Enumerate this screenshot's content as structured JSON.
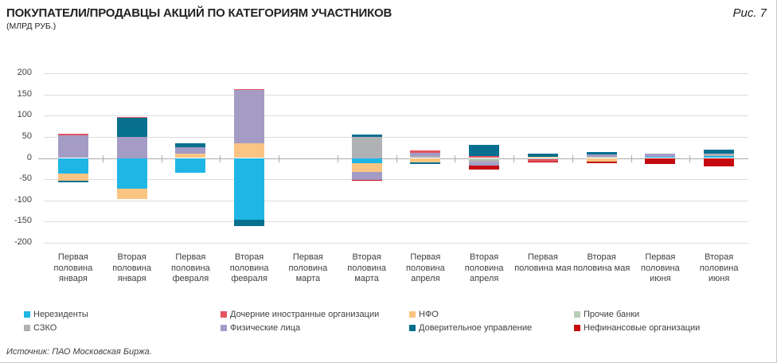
{
  "figure": {
    "title": "ПОКУПАТЕЛИ/ПРОДАВЦЫ АКЦИЙ ПО КАТЕГОРИЯМ УЧАСТНИКОВ",
    "subtitle": "(МЛРД РУБ.)",
    "figure_label": "Рис. 7",
    "source": "Источник: ПАО Московская Биржа."
  },
  "chart_data": {
    "type": "bar",
    "stacked": true,
    "title": "ПОКУПАТЕЛИ/ПРОДАВЦЫ АКЦИЙ ПО КАТЕГОРИЯМ УЧАСТНИКОВ (МЛРД РУБ.)",
    "xlabel": "",
    "ylabel": "млрд руб.",
    "ylim": [
      -200,
      200
    ],
    "yticks": [
      200,
      150,
      100,
      50,
      0,
      -50,
      -100,
      -150,
      -200
    ],
    "grid": true,
    "legend_position": "bottom",
    "categories": [
      "Первая половина января",
      "Вторая половина января",
      "Первая половина февраля",
      "Вторая половина февраля",
      "Первая половина марта",
      "Вторая половина марта",
      "Первая половина апреля",
      "Вторая половина апреля",
      "Первая половина мая",
      "Вторая половина мая",
      "Первая половина июня",
      "Вторая половина июня"
    ],
    "legend": [
      "Нерезиденты",
      "Дочерние иностранные организации",
      "НФО",
      "Прочие банки",
      "СЗКО",
      "Физические лица",
      "Доверительное управление",
      "Нефинансовые организации"
    ],
    "series_colors": {
      "Нерезиденты": "#1fb6e6",
      "Дочерние иностранные организации": "#e25560",
      "НФО": "#fac582",
      "Прочие банки": "#b7cdb6",
      "СЗКО": "#b0b1b4",
      "Физические лица": "#a59cc6",
      "Доверительное управление": "#07708f",
      "Нефинансовые организации": "#c50b10"
    },
    "bars": [
      {
        "category": "Первая половина января",
        "positive": [
          {
            "name": "Физические лица",
            "value": 53
          },
          {
            "name": "Дочерние иностранные организации",
            "value": 5
          }
        ],
        "negative": [
          {
            "name": "Нерезиденты",
            "value": -36
          },
          {
            "name": "НФО",
            "value": -18
          },
          {
            "name": "Доверительное управление",
            "value": -4
          }
        ]
      },
      {
        "category": "Вторая половина января",
        "positive": [
          {
            "name": "Физические лица",
            "value": 50
          },
          {
            "name": "Доверительное управление",
            "value": 45
          },
          {
            "name": "Дочерние иностранные организации",
            "value": 2
          }
        ],
        "negative": [
          {
            "name": "Нерезиденты",
            "value": -73
          },
          {
            "name": "НФО",
            "value": -23
          }
        ]
      },
      {
        "category": "Первая половина февраля",
        "positive": [
          {
            "name": "НФО",
            "value": 10
          },
          {
            "name": "Физические лица",
            "value": 15
          },
          {
            "name": "Доверительное управление",
            "value": 9
          }
        ],
        "negative": [
          {
            "name": "Нерезиденты",
            "value": -34
          }
        ]
      },
      {
        "category": "Вторая половина февраля",
        "positive": [
          {
            "name": "НФО",
            "value": 34
          },
          {
            "name": "Физические лица",
            "value": 127
          },
          {
            "name": "Дочерние иностранные организации",
            "value": 2
          }
        ],
        "negative": [
          {
            "name": "Нерезиденты",
            "value": -145
          },
          {
            "name": "Доверительное управление",
            "value": -16
          }
        ]
      },
      {
        "category": "Первая половина марта",
        "positive": [],
        "negative": []
      },
      {
        "category": "Вторая половина марта",
        "positive": [
          {
            "name": "СЗКО",
            "value": 50
          },
          {
            "name": "Доверительное управление",
            "value": 6
          }
        ],
        "negative": [
          {
            "name": "Нерезиденты",
            "value": -12
          },
          {
            "name": "НФО",
            "value": -21
          },
          {
            "name": "Физические лица",
            "value": -18
          },
          {
            "name": "Нефинансовые организации",
            "value": -3
          }
        ]
      },
      {
        "category": "Первая половина апреля",
        "positive": [
          {
            "name": "СЗКО",
            "value": 4
          },
          {
            "name": "Физические лица",
            "value": 9
          },
          {
            "name": "Дочерние иностранные организации",
            "value": 4
          }
        ],
        "negative": [
          {
            "name": "НФО",
            "value": -10
          },
          {
            "name": "Доверительное управление",
            "value": -5
          }
        ]
      },
      {
        "category": "Вторая половина апреля",
        "positive": [
          {
            "name": "Дочерние иностранные организации",
            "value": 4
          },
          {
            "name": "Доверительное управление",
            "value": 27
          }
        ],
        "negative": [
          {
            "name": "Прочие банки",
            "value": -5
          },
          {
            "name": "СЗКО",
            "value": -6
          },
          {
            "name": "Физические лица",
            "value": -6
          },
          {
            "name": "Нефинансовые организации",
            "value": -10
          }
        ]
      },
      {
        "category": "Первая половина мая",
        "positive": [
          {
            "name": "НФО",
            "value": 3
          },
          {
            "name": "Доверительное управление",
            "value": 7
          }
        ],
        "negative": [
          {
            "name": "СЗКО",
            "value": -3
          },
          {
            "name": "Дочерние иностранные организации",
            "value": -5
          },
          {
            "name": "Нефинансовые организации",
            "value": -2
          }
        ]
      },
      {
        "category": "Вторая половина мая",
        "positive": [
          {
            "name": "Прочие банки",
            "value": 2
          },
          {
            "name": "Физические лица",
            "value": 6
          },
          {
            "name": "Доверительное управление",
            "value": 7
          }
        ],
        "negative": [
          {
            "name": "НФО",
            "value": -8
          },
          {
            "name": "Нефинансовые организации",
            "value": -4
          }
        ]
      },
      {
        "category": "Первая половина июня",
        "positive": [
          {
            "name": "Нерезиденты",
            "value": 2
          },
          {
            "name": "Физические лица",
            "value": 9
          }
        ],
        "negative": [
          {
            "name": "Нефинансовые организации",
            "value": -14
          }
        ]
      },
      {
        "category": "Вторая половина июня",
        "positive": [
          {
            "name": "Нерезиденты",
            "value": 5
          },
          {
            "name": "СЗКО",
            "value": 5
          },
          {
            "name": "Доверительное управление",
            "value": 10
          }
        ],
        "negative": [
          {
            "name": "Нефинансовые организации",
            "value": -19
          }
        ]
      }
    ]
  }
}
